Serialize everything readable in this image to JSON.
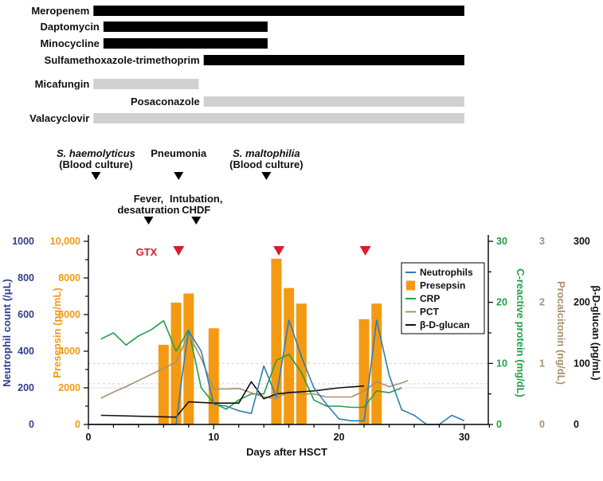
{
  "colors": {
    "neutrophils": "#2f7fb0",
    "presepsin": "#f39a12",
    "crp": "#22a045",
    "pct": "#a9906f",
    "bdg": "#111111",
    "gtx": "#d4202c",
    "drug_dark": "#000000",
    "drug_light": "#d0d0d0",
    "left_axis": "#2e3f8c"
  },
  "drugs": [
    {
      "name": "Meropenem",
      "start": 0.4,
      "end": 30,
      "shade": "dark"
    },
    {
      "name": "Daptomycin",
      "start": 1.2,
      "end": 14.3,
      "shade": "dark"
    },
    {
      "name": "Minocycline",
      "start": 1.2,
      "end": 14.3,
      "shade": "dark"
    },
    {
      "name": "Sulfamethoxazole-trimethoprim",
      "start": 9.2,
      "end": 30,
      "shade": "dark"
    },
    {
      "name": "Micafungin",
      "start": 0.4,
      "end": 8.8,
      "shade": "light"
    },
    {
      "name": "Posaconazole",
      "start": 9.2,
      "end": 30,
      "shade": "light"
    },
    {
      "name": "Valacyclovir",
      "start": 0.4,
      "end": 30,
      "shade": "light"
    }
  ],
  "events": [
    {
      "lines": [
        "S. haemolyticus",
        "(Blood culture)"
      ],
      "day": 0.6,
      "italic_first": true,
      "row": "upper"
    },
    {
      "lines": [
        "Pneumonia"
      ],
      "day": 7.2,
      "italic_first": false,
      "row": "upper"
    },
    {
      "lines": [
        "S. maltophilia",
        "(Blood culture)"
      ],
      "day": 14.2,
      "italic_first": true,
      "row": "upper"
    },
    {
      "lines": [
        "Fever,",
        "desaturation"
      ],
      "day": 4.8,
      "italic_first": false,
      "row": "lower"
    },
    {
      "lines": [
        "Intubation,",
        "CHDF"
      ],
      "day": 8.6,
      "italic_first": false,
      "row": "lower"
    }
  ],
  "chart_data": {
    "type": "line",
    "xlabel": "Days after HSCT",
    "xlim": [
      0,
      32
    ],
    "xticks": [
      0,
      10,
      20,
      30
    ],
    "axes": {
      "neutrophils": {
        "label": "Neutrophil count (/μL)",
        "ticks": [
          "0",
          "200",
          "400",
          "600",
          "800",
          "1000"
        ],
        "range": [
          0,
          1000
        ]
      },
      "presepsin": {
        "label": "Presepsin (pg/mL)",
        "ticks": [
          "0",
          "2000",
          "4000",
          "6000",
          "8000",
          "10,000"
        ],
        "range": [
          0,
          10000
        ]
      },
      "crp": {
        "label": "C-reactive protein (mg/dL)",
        "ticks": [
          "0",
          "10",
          "20",
          "30"
        ],
        "range": [
          0,
          30
        ]
      },
      "pct": {
        "label": "Procalcitonin (ng/dL)",
        "ticks": [
          "0",
          "1",
          "2",
          "3"
        ],
        "range": [
          0,
          3
        ]
      },
      "bdg": {
        "label": "β-D-glucan (pg/mL)",
        "ticks": [
          "0",
          "100",
          "200",
          "300"
        ],
        "range": [
          0,
          300
        ]
      }
    },
    "gtx_label": "GTX",
    "gtx_days": [
      7.2,
      15.2,
      22.1
    ],
    "legend": [
      "Neutrophils",
      "Presepsin",
      "CRP",
      "PCT",
      "β-D-glucan"
    ],
    "presepsin": {
      "x": [
        6,
        7,
        8,
        10,
        15,
        16,
        17,
        22,
        23
      ],
      "values": [
        4350,
        6650,
        7150,
        5250,
        9050,
        7450,
        6600,
        5750,
        6600
      ]
    },
    "neutrophils": {
      "x": [
        0,
        1,
        2,
        3,
        4,
        5,
        6,
        7,
        7.5,
        8,
        9,
        10,
        11,
        12,
        13,
        14,
        15,
        16,
        17,
        18,
        19,
        20,
        21,
        22,
        23,
        24,
        25,
        26,
        27,
        28,
        29,
        30
      ],
      "values": [
        0,
        0,
        0,
        0,
        0,
        0,
        0,
        0,
        280,
        510,
        400,
        110,
        100,
        75,
        60,
        320,
        150,
        570,
        370,
        200,
        110,
        30,
        20,
        20,
        570,
        270,
        80,
        50,
        0,
        0,
        50,
        20
      ]
    },
    "crp": {
      "x": [
        1,
        2,
        3,
        4,
        5,
        6,
        7,
        8,
        9,
        10,
        11,
        12,
        13,
        14,
        15,
        16,
        17,
        18,
        19,
        20,
        21,
        22,
        23,
        24,
        25
      ],
      "values": [
        14,
        15,
        13,
        14.5,
        15.5,
        17,
        12,
        15.5,
        6,
        3.5,
        2.5,
        4,
        5,
        5,
        10.5,
        11.5,
        8.5,
        4,
        3,
        3,
        2.8,
        2.8,
        5.5,
        5.2,
        6
      ]
    },
    "pct": {
      "x": [
        1,
        2,
        3,
        4,
        5,
        6,
        7,
        8,
        9,
        10,
        11,
        12,
        13,
        14,
        15,
        16,
        17,
        18,
        19,
        20,
        21,
        22,
        23,
        24,
        25,
        25.5
      ],
      "values": [
        0.43,
        0.53,
        0.62,
        0.72,
        0.82,
        0.92,
        1.02,
        1.48,
        1.08,
        0.58,
        0.58,
        0.59,
        0.52,
        0.45,
        0.42,
        0.55,
        0.5,
        0.5,
        0.45,
        0.45,
        0.45,
        0.55,
        0.7,
        0.62,
        0.68,
        0.72
      ]
    },
    "bdg": {
      "x": [
        1,
        7,
        8,
        10,
        12,
        13,
        14,
        15,
        16,
        18,
        20,
        22
      ],
      "values": [
        15,
        12,
        37,
        35,
        35,
        70,
        42,
        50,
        52,
        55,
        60,
        63
      ]
    }
  }
}
